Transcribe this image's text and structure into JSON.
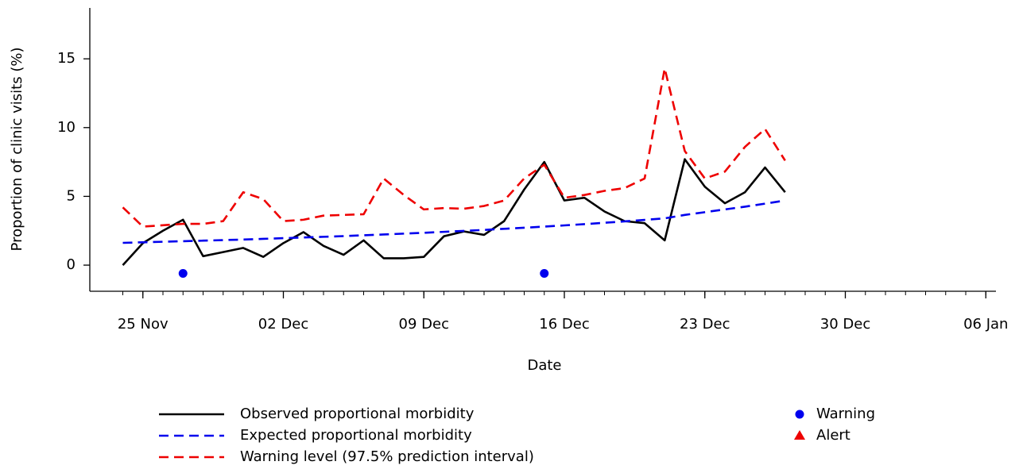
{
  "chart_data": {
    "type": "line",
    "x_label": "Date",
    "y_label": "Proportion of clinic visits (%)",
    "x": [
      "24 Nov",
      "25 Nov",
      "26 Nov",
      "27 Nov",
      "28 Nov",
      "29 Nov",
      "30 Nov",
      "01 Dec",
      "02 Dec",
      "03 Dec",
      "04 Dec",
      "05 Dec",
      "06 Dec",
      "07 Dec",
      "08 Dec",
      "09 Dec",
      "10 Dec",
      "11 Dec",
      "12 Dec",
      "13 Dec",
      "14 Dec",
      "15 Dec",
      "16 Dec",
      "17 Dec",
      "18 Dec",
      "19 Dec",
      "20 Dec",
      "21 Dec",
      "22 Dec",
      "23 Dec",
      "24 Dec",
      "25 Dec",
      "26 Dec",
      "27 Dec"
    ],
    "series": [
      {
        "name": "Observed proportional morbidity",
        "color": "#000000",
        "dashed": false,
        "values": [
          0,
          1.6,
          2.5,
          3.3,
          0.65,
          0.95,
          1.25,
          0.6,
          1.6,
          2.4,
          1.4,
          0.75,
          1.8,
          0.5,
          0.5,
          0.6,
          2.1,
          2.45,
          2.2,
          3.2,
          5.5,
          7.5,
          4.7,
          4.9,
          3.9,
          3.2,
          3.05,
          1.8,
          7.7,
          5.7,
          4.5,
          5.3,
          7.1,
          5.3
        ]
      },
      {
        "name": "Expected proportional morbidity",
        "color": "#0000ee",
        "dashed": true,
        "values": [
          1.62,
          1.66,
          1.7,
          1.74,
          1.78,
          1.82,
          1.86,
          1.91,
          1.96,
          2.01,
          2.06,
          2.11,
          2.17,
          2.23,
          2.29,
          2.35,
          2.42,
          2.49,
          2.56,
          2.64,
          2.72,
          2.8,
          2.89,
          2.98,
          3.08,
          3.18,
          3.29,
          3.4,
          3.65,
          3.85,
          4.05,
          4.25,
          4.47,
          4.7
        ]
      },
      {
        "name": "Warning level (97.5% prediction interval)",
        "color": "#ee0000",
        "dashed": true,
        "values": [
          4.2,
          2.8,
          2.9,
          3.0,
          3.0,
          3.2,
          5.3,
          4.8,
          3.2,
          3.3,
          3.6,
          3.65,
          3.7,
          6.3,
          5.1,
          4.05,
          4.15,
          4.1,
          4.3,
          4.7,
          6.3,
          7.3,
          4.9,
          5.1,
          5.4,
          5.6,
          6.3,
          14.3,
          8.3,
          6.3,
          6.8,
          8.6,
          9.9,
          7.6
        ]
      }
    ],
    "points": [
      {
        "name": "Warning",
        "color": "#0000ee",
        "marker": "circle",
        "x": [
          "27 Nov",
          "15 Dec"
        ],
        "values": [
          -0.6,
          -0.6
        ]
      },
      {
        "name": "Alert",
        "color": "#ee0000",
        "marker": "triangle",
        "x": [],
        "values": []
      }
    ],
    "xlim": [
      "22 Nov",
      "07 Jan"
    ],
    "xticks": [
      "25 Nov",
      "02 Dec",
      "09 Dec",
      "16 Dec",
      "23 Dec",
      "30 Dec",
      "06 Jan"
    ],
    "ylim": [
      -1.9,
      18.7
    ],
    "yticks": [
      0,
      5,
      10,
      15
    ]
  }
}
